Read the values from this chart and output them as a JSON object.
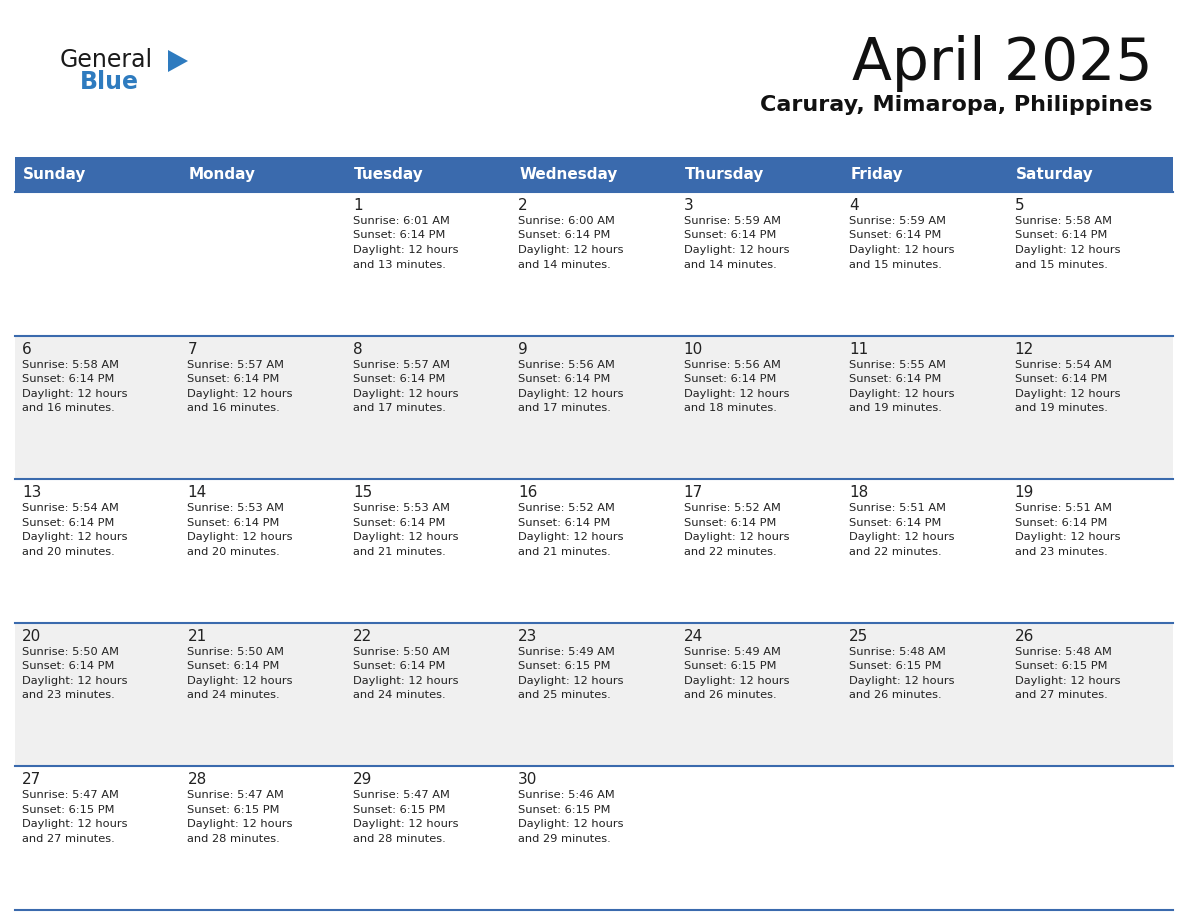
{
  "title": "April 2025",
  "subtitle": "Caruray, Mimaropa, Philippines",
  "header_color": "#3a6aad",
  "header_text_color": "#FFFFFF",
  "days_of_week": [
    "Sunday",
    "Monday",
    "Tuesday",
    "Wednesday",
    "Thursday",
    "Friday",
    "Saturday"
  ],
  "bg_color": "#FFFFFF",
  "row_alt_color": "#f0f0f0",
  "cell_text_color": "#222222",
  "line_color": "#3a6aad",
  "logo_color1": "#1a1a1a",
  "logo_color2": "#2e7bbf",
  "logo_text1": "General",
  "logo_text2": "Blue",
  "calendar_data": [
    [
      {
        "day": "",
        "sunrise": "",
        "sunset": "",
        "daylight": ""
      },
      {
        "day": "",
        "sunrise": "",
        "sunset": "",
        "daylight": ""
      },
      {
        "day": "1",
        "sunrise": "6:01 AM",
        "sunset": "6:14 PM",
        "daylight": "12 hours and 13 minutes."
      },
      {
        "day": "2",
        "sunrise": "6:00 AM",
        "sunset": "6:14 PM",
        "daylight": "12 hours and 14 minutes."
      },
      {
        "day": "3",
        "sunrise": "5:59 AM",
        "sunset": "6:14 PM",
        "daylight": "12 hours and 14 minutes."
      },
      {
        "day": "4",
        "sunrise": "5:59 AM",
        "sunset": "6:14 PM",
        "daylight": "12 hours and 15 minutes."
      },
      {
        "day": "5",
        "sunrise": "5:58 AM",
        "sunset": "6:14 PM",
        "daylight": "12 hours and 15 minutes."
      }
    ],
    [
      {
        "day": "6",
        "sunrise": "5:58 AM",
        "sunset": "6:14 PM",
        "daylight": "12 hours and 16 minutes."
      },
      {
        "day": "7",
        "sunrise": "5:57 AM",
        "sunset": "6:14 PM",
        "daylight": "12 hours and 16 minutes."
      },
      {
        "day": "8",
        "sunrise": "5:57 AM",
        "sunset": "6:14 PM",
        "daylight": "12 hours and 17 minutes."
      },
      {
        "day": "9",
        "sunrise": "5:56 AM",
        "sunset": "6:14 PM",
        "daylight": "12 hours and 17 minutes."
      },
      {
        "day": "10",
        "sunrise": "5:56 AM",
        "sunset": "6:14 PM",
        "daylight": "12 hours and 18 minutes."
      },
      {
        "day": "11",
        "sunrise": "5:55 AM",
        "sunset": "6:14 PM",
        "daylight": "12 hours and 19 minutes."
      },
      {
        "day": "12",
        "sunrise": "5:54 AM",
        "sunset": "6:14 PM",
        "daylight": "12 hours and 19 minutes."
      }
    ],
    [
      {
        "day": "13",
        "sunrise": "5:54 AM",
        "sunset": "6:14 PM",
        "daylight": "12 hours and 20 minutes."
      },
      {
        "day": "14",
        "sunrise": "5:53 AM",
        "sunset": "6:14 PM",
        "daylight": "12 hours and 20 minutes."
      },
      {
        "day": "15",
        "sunrise": "5:53 AM",
        "sunset": "6:14 PM",
        "daylight": "12 hours and 21 minutes."
      },
      {
        "day": "16",
        "sunrise": "5:52 AM",
        "sunset": "6:14 PM",
        "daylight": "12 hours and 21 minutes."
      },
      {
        "day": "17",
        "sunrise": "5:52 AM",
        "sunset": "6:14 PM",
        "daylight": "12 hours and 22 minutes."
      },
      {
        "day": "18",
        "sunrise": "5:51 AM",
        "sunset": "6:14 PM",
        "daylight": "12 hours and 22 minutes."
      },
      {
        "day": "19",
        "sunrise": "5:51 AM",
        "sunset": "6:14 PM",
        "daylight": "12 hours and 23 minutes."
      }
    ],
    [
      {
        "day": "20",
        "sunrise": "5:50 AM",
        "sunset": "6:14 PM",
        "daylight": "12 hours and 23 minutes."
      },
      {
        "day": "21",
        "sunrise": "5:50 AM",
        "sunset": "6:14 PM",
        "daylight": "12 hours and 24 minutes."
      },
      {
        "day": "22",
        "sunrise": "5:50 AM",
        "sunset": "6:14 PM",
        "daylight": "12 hours and 24 minutes."
      },
      {
        "day": "23",
        "sunrise": "5:49 AM",
        "sunset": "6:15 PM",
        "daylight": "12 hours and 25 minutes."
      },
      {
        "day": "24",
        "sunrise": "5:49 AM",
        "sunset": "6:15 PM",
        "daylight": "12 hours and 26 minutes."
      },
      {
        "day": "25",
        "sunrise": "5:48 AM",
        "sunset": "6:15 PM",
        "daylight": "12 hours and 26 minutes."
      },
      {
        "day": "26",
        "sunrise": "5:48 AM",
        "sunset": "6:15 PM",
        "daylight": "12 hours and 27 minutes."
      }
    ],
    [
      {
        "day": "27",
        "sunrise": "5:47 AM",
        "sunset": "6:15 PM",
        "daylight": "12 hours and 27 minutes."
      },
      {
        "day": "28",
        "sunrise": "5:47 AM",
        "sunset": "6:15 PM",
        "daylight": "12 hours and 28 minutes."
      },
      {
        "day": "29",
        "sunrise": "5:47 AM",
        "sunset": "6:15 PM",
        "daylight": "12 hours and 28 minutes."
      },
      {
        "day": "30",
        "sunrise": "5:46 AM",
        "sunset": "6:15 PM",
        "daylight": "12 hours and 29 minutes."
      },
      {
        "day": "",
        "sunrise": "",
        "sunset": "",
        "daylight": ""
      },
      {
        "day": "",
        "sunrise": "",
        "sunset": "",
        "daylight": ""
      },
      {
        "day": "",
        "sunrise": "",
        "sunset": "",
        "daylight": ""
      }
    ]
  ]
}
